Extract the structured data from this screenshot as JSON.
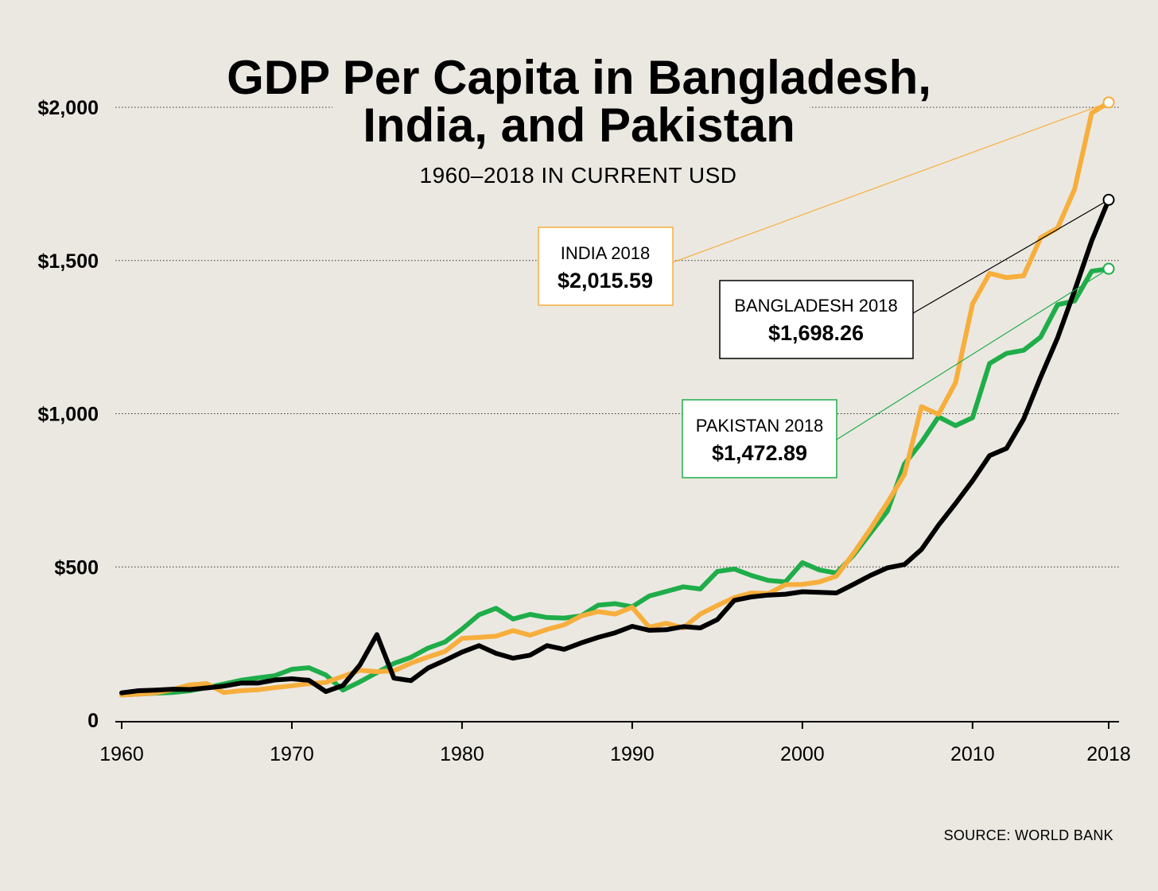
{
  "title_line1": "GDP Per Capita in Bangladesh,",
  "title_line2": "India, and Pakistan",
  "subtitle": "1960–2018 IN CURRENT USD",
  "source": "SOURCE: WORLD BANK",
  "callouts": {
    "india": {
      "label": "INDIA 2018",
      "value": "$2,015.59"
    },
    "bangladesh": {
      "label": "BANGLADESH 2018",
      "value": "$1,698.26"
    },
    "pakistan": {
      "label": "PAKISTAN 2018",
      "value": "$1,472.89"
    }
  },
  "colors": {
    "india": "#f7ae3c",
    "bangladesh": "#000000",
    "pakistan": "#1fad4a",
    "background": "#ebe8e1"
  },
  "chart_data": {
    "type": "line",
    "title": "GDP Per Capita in Bangladesh, India, and Pakistan",
    "subtitle": "1960–2018 IN CURRENT USD",
    "xlabel": "",
    "ylabel": "",
    "xlim": [
      1960,
      2018
    ],
    "ylim": [
      0,
      2000
    ],
    "grid": true,
    "x_ticks": [
      1960,
      1970,
      1980,
      1990,
      2000,
      2010,
      2018
    ],
    "y_ticks": [
      {
        "value": 0,
        "label": "0"
      },
      {
        "value": 500,
        "label": "$500"
      },
      {
        "value": 1000,
        "label": "$1,000"
      },
      {
        "value": 1500,
        "label": "$1,500"
      },
      {
        "value": 2000,
        "label": "$2,000"
      }
    ],
    "x": [
      1960,
      1961,
      1962,
      1963,
      1964,
      1965,
      1966,
      1967,
      1968,
      1969,
      1970,
      1971,
      1972,
      1973,
      1974,
      1975,
      1976,
      1977,
      1978,
      1979,
      1980,
      1981,
      1982,
      1983,
      1984,
      1985,
      1986,
      1987,
      1988,
      1989,
      1990,
      1991,
      1992,
      1993,
      1994,
      1995,
      1996,
      1997,
      1998,
      1999,
      2000,
      2001,
      2002,
      2003,
      2004,
      2005,
      2006,
      2007,
      2008,
      2009,
      2010,
      2011,
      2012,
      2013,
      2014,
      2015,
      2016,
      2017,
      2018
    ],
    "series": [
      {
        "key": "pakistan",
        "values": [
          82,
          85,
          88,
          90,
          96,
          106,
          118,
          130,
          138,
          145,
          166,
          171,
          147,
          98,
          125,
          155,
          185,
          205,
          235,
          255,
          297,
          344,
          365,
          330,
          345,
          335,
          333,
          340,
          375,
          380,
          370,
          405,
          420,
          435,
          428,
          485,
          493,
          472,
          456,
          451,
          514,
          490,
          480,
          538,
          610,
          682,
          836,
          907,
          990,
          961,
          987,
          1164,
          1197,
          1207,
          1250,
          1356,
          1368,
          1465,
          1473
        ]
      },
      {
        "key": "india",
        "values": [
          82,
          85,
          89,
          100,
          115,
          119,
          90,
          96,
          99,
          106,
          112,
          119,
          123,
          143,
          163,
          158,
          161,
          186,
          206,
          224,
          267,
          270,
          274,
          292,
          277,
          296,
          311,
          340,
          354,
          346,
          368,
          303,
          316,
          301,
          346,
          374,
          400,
          415,
          413,
          442,
          443,
          451,
          470,
          544,
          624,
          710,
          802,
          1023,
          998,
          1101,
          1358,
          1458,
          1444,
          1450,
          1574,
          1606,
          1733,
          1981,
          2016
        ]
      },
      {
        "key": "bangladesh",
        "values": [
          89,
          96,
          98,
          101,
          100,
          105,
          111,
          121,
          121,
          131,
          135,
          130,
          93,
          113,
          180,
          279,
          137,
          129,
          170,
          195,
          222,
          243,
          218,
          202,
          212,
          243,
          231,
          252,
          270,
          285,
          306,
          293,
          295,
          305,
          301,
          328,
          391,
          402,
          408,
          411,
          419,
          417,
          415,
          443,
          472,
          497,
          508,
          557,
          636,
          707,
          781,
          863,
          887,
          982,
          1119,
          1248,
          1402,
          1564,
          1698
        ]
      }
    ]
  }
}
